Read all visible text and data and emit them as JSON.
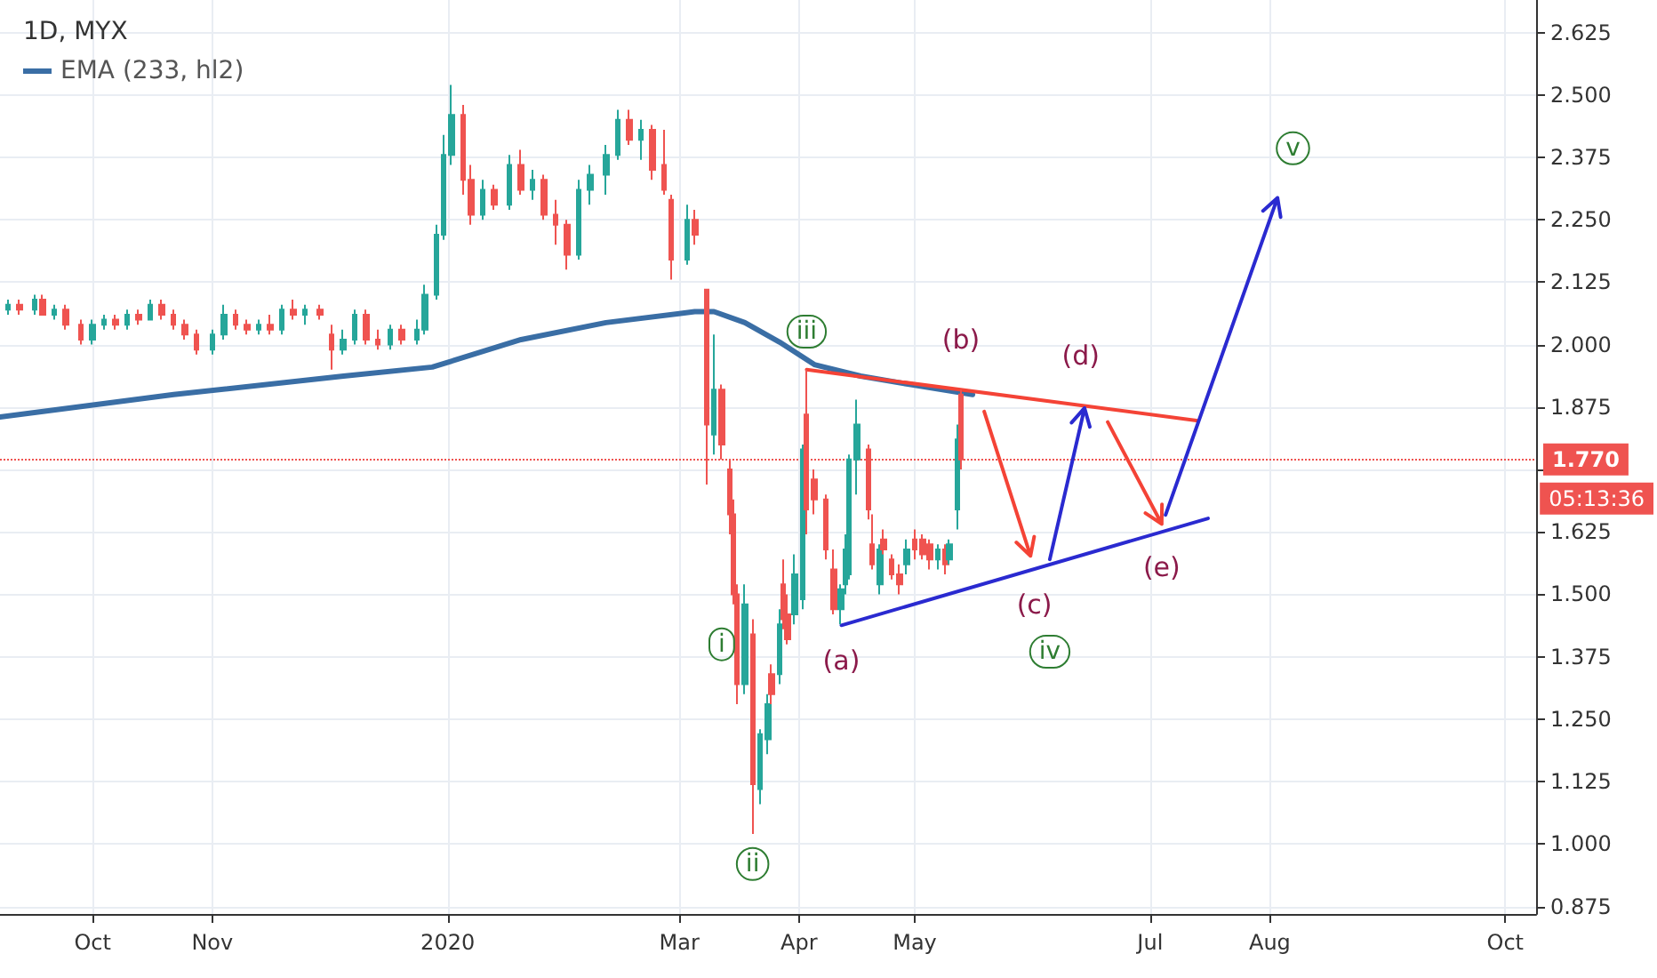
{
  "chart_data": {
    "type": "candlestick",
    "title": "1D, MYX",
    "legend": "top left",
    "grid": true,
    "xlim": [
      "2019-09-07",
      "2020-10-09"
    ],
    "xticks": [
      {
        "value": "2019-10-01",
        "label": "Oct"
      },
      {
        "value": "2019-11-01",
        "label": "Nov"
      },
      {
        "value": "2020-01-01",
        "label": "2020"
      },
      {
        "value": "2020-03-01",
        "label": "Mar"
      },
      {
        "value": "2020-04-01",
        "label": "Apr"
      },
      {
        "value": "2020-05-01",
        "label": "May"
      },
      {
        "value": "2020-07-01",
        "label": "Jul"
      },
      {
        "value": "2020-08-01",
        "label": "Aug"
      },
      {
        "value": "2020-10-01",
        "label": "Oct"
      }
    ],
    "ylim": [
      0.86,
      2.69
    ],
    "yticks": [
      0.875,
      {
        "value": 1,
        "label": "1.000"
      },
      1.125,
      {
        "value": 1.25,
        "label": "1.250"
      },
      1.375,
      {
        "value": 1.5,
        "label": "1.500"
      },
      1.625,
      {
        "value": 1.75,
        "label": null
      },
      1.875,
      {
        "value": 2,
        "label": "2.000"
      },
      2.125,
      {
        "value": 2.25,
        "label": "2.250"
      },
      2.375,
      {
        "value": 2.5,
        "label": "2.500"
      },
      2.625
    ],
    "x": [
      "2019-09-09",
      "2019-09-12",
      "2019-09-16",
      "2019-09-18",
      "2019-09-21",
      "2019-09-24",
      "2019-09-28",
      "2019-10-01",
      "2019-10-04",
      "2019-10-07",
      "2019-10-10",
      "2019-10-13",
      "2019-10-16",
      "2019-10-19",
      "2019-10-22",
      "2019-10-25",
      "2019-10-28",
      "2019-11-01",
      "2019-11-04",
      "2019-11-07",
      "2019-11-10",
      "2019-11-13",
      "2019-11-16",
      "2019-11-19",
      "2019-11-22",
      "2019-11-25",
      "2019-11-29",
      "2019-12-02",
      "2019-12-05",
      "2019-12-08",
      "2019-12-11",
      "2019-12-14",
      "2019-12-17",
      "2019-12-20",
      "2019-12-24",
      "2019-12-26",
      "2019-12-29",
      "2019-12-31",
      "2020-01-02",
      "2020-01-05",
      "2020-01-07",
      "2020-01-10",
      "2020-01-13",
      "2020-01-17",
      "2020-01-20",
      "2020-01-23",
      "2020-01-26",
      "2020-01-29",
      "2020-02-01",
      "2020-02-04",
      "2020-02-07",
      "2020-02-11",
      "2020-02-14",
      "2020-02-17",
      "2020-02-20",
      "2020-02-23",
      "2020-02-26",
      "2020-02-28",
      "2020-03-03",
      "2020-03-05",
      "2020-03-08",
      "2020-03-10",
      "2020-03-12",
      "2020-03-14",
      "2020-03-15",
      "2020-03-16",
      "2020-03-18",
      "2020-03-20",
      "2020-03-22",
      "2020-03-24",
      "2020-03-25",
      "2020-03-27",
      "2020-03-28",
      "2020-03-29",
      "2020-03-31",
      "2020-04-02",
      "2020-04-03",
      "2020-04-05",
      "2020-04-08",
      "2020-04-10",
      "2020-04-12",
      "2020-04-13",
      "2020-04-14",
      "2020-04-16",
      "2020-04-19",
      "2020-04-20",
      "2020-04-22",
      "2020-04-23",
      "2020-04-25",
      "2020-04-27",
      "2020-04-29",
      "2020-05-01",
      "2020-05-03",
      "2020-05-05",
      "2020-05-07",
      "2020-05-09",
      "2020-05-10",
      "2020-05-12",
      "2020-05-13"
    ],
    "ohlc": [
      [
        2.07,
        2.09,
        2.06,
        2.08
      ],
      [
        2.08,
        2.09,
        2.06,
        2.07
      ],
      [
        2.07,
        2.1,
        2.06,
        2.09
      ],
      [
        2.09,
        2.1,
        2.06,
        2.06
      ],
      [
        2.06,
        2.08,
        2.05,
        2.07
      ],
      [
        2.07,
        2.08,
        2.03,
        2.04
      ],
      [
        2.04,
        2.05,
        2.0,
        2.01
      ],
      [
        2.01,
        2.05,
        2.0,
        2.04
      ],
      [
        2.04,
        2.06,
        2.03,
        2.05
      ],
      [
        2.05,
        2.06,
        2.03,
        2.04
      ],
      [
        2.04,
        2.07,
        2.03,
        2.06
      ],
      [
        2.06,
        2.07,
        2.04,
        2.05
      ],
      [
        2.05,
        2.09,
        2.05,
        2.08
      ],
      [
        2.08,
        2.09,
        2.05,
        2.06
      ],
      [
        2.06,
        2.07,
        2.03,
        2.04
      ],
      [
        2.04,
        2.05,
        2.01,
        2.02
      ],
      [
        2.02,
        2.03,
        1.98,
        1.99
      ],
      [
        1.99,
        2.03,
        1.98,
        2.02
      ],
      [
        2.02,
        2.08,
        2.01,
        2.06
      ],
      [
        2.06,
        2.07,
        2.03,
        2.04
      ],
      [
        2.04,
        2.05,
        2.02,
        2.03
      ],
      [
        2.03,
        2.05,
        2.02,
        2.04
      ],
      [
        2.04,
        2.06,
        2.02,
        2.03
      ],
      [
        2.03,
        2.08,
        2.02,
        2.07
      ],
      [
        2.07,
        2.09,
        2.05,
        2.06
      ],
      [
        2.06,
        2.08,
        2.04,
        2.07
      ],
      [
        2.07,
        2.08,
        2.05,
        2.06
      ],
      [
        2.02,
        2.04,
        1.95,
        1.99
      ],
      [
        1.99,
        2.03,
        1.98,
        2.01
      ],
      [
        2.01,
        2.07,
        2.0,
        2.06
      ],
      [
        2.06,
        2.07,
        2.0,
        2.01
      ],
      [
        2.01,
        2.03,
        1.99,
        2.0
      ],
      [
        2.0,
        2.04,
        1.99,
        2.03
      ],
      [
        2.03,
        2.04,
        2.0,
        2.01
      ],
      [
        2.01,
        2.05,
        2.0,
        2.03
      ],
      [
        2.03,
        2.12,
        2.02,
        2.1
      ],
      [
        2.1,
        2.24,
        2.09,
        2.22
      ],
      [
        2.22,
        2.42,
        2.21,
        2.38
      ],
      [
        2.38,
        2.52,
        2.36,
        2.46
      ],
      [
        2.46,
        2.48,
        2.3,
        2.33
      ],
      [
        2.33,
        2.36,
        2.24,
        2.26
      ],
      [
        2.26,
        2.33,
        2.25,
        2.31
      ],
      [
        2.31,
        2.32,
        2.27,
        2.28
      ],
      [
        2.28,
        2.38,
        2.27,
        2.36
      ],
      [
        2.36,
        2.39,
        2.3,
        2.31
      ],
      [
        2.31,
        2.35,
        2.29,
        2.33
      ],
      [
        2.33,
        2.34,
        2.25,
        2.26
      ],
      [
        2.26,
        2.29,
        2.2,
        2.24
      ],
      [
        2.24,
        2.25,
        2.15,
        2.18
      ],
      [
        2.18,
        2.33,
        2.17,
        2.31
      ],
      [
        2.31,
        2.36,
        2.28,
        2.34
      ],
      [
        2.34,
        2.4,
        2.3,
        2.38
      ],
      [
        2.38,
        2.47,
        2.37,
        2.45
      ],
      [
        2.45,
        2.47,
        2.4,
        2.41
      ],
      [
        2.41,
        2.45,
        2.37,
        2.43
      ],
      [
        2.43,
        2.44,
        2.33,
        2.35
      ],
      [
        2.36,
        2.43,
        2.3,
        2.31
      ],
      [
        2.29,
        2.3,
        2.13,
        2.17
      ],
      [
        2.17,
        2.28,
        2.16,
        2.25
      ],
      [
        2.25,
        2.27,
        2.2,
        2.22
      ],
      [
        2.11,
        2.11,
        1.72,
        1.84
      ],
      [
        1.82,
        2.02,
        1.78,
        1.91
      ],
      [
        1.91,
        1.92,
        1.77,
        1.8
      ],
      [
        1.75,
        1.77,
        1.62,
        1.66
      ],
      [
        1.66,
        1.69,
        1.48,
        1.5
      ],
      [
        1.5,
        1.52,
        1.28,
        1.32
      ],
      [
        1.32,
        1.52,
        1.3,
        1.48
      ],
      [
        1.42,
        1.45,
        1.02,
        1.12
      ],
      [
        1.11,
        1.23,
        1.08,
        1.22
      ],
      [
        1.21,
        1.3,
        1.18,
        1.28
      ],
      [
        1.34,
        1.36,
        1.28,
        1.3
      ],
      [
        1.34,
        1.47,
        1.32,
        1.44
      ],
      [
        1.52,
        1.57,
        1.43,
        1.45
      ],
      [
        1.46,
        1.5,
        1.4,
        1.41
      ],
      [
        1.46,
        1.58,
        1.44,
        1.54
      ],
      [
        1.49,
        1.8,
        1.47,
        1.79
      ],
      [
        1.86,
        1.95,
        1.62,
        1.67
      ],
      [
        1.73,
        1.75,
        1.66,
        1.69
      ],
      [
        1.69,
        1.7,
        1.57,
        1.59
      ],
      [
        1.55,
        1.59,
        1.46,
        1.47
      ],
      [
        1.47,
        1.52,
        1.44,
        1.51
      ],
      [
        1.52,
        1.62,
        1.5,
        1.59
      ],
      [
        1.54,
        1.78,
        1.53,
        1.77
      ],
      [
        1.77,
        1.89,
        1.7,
        1.84
      ],
      [
        1.79,
        1.8,
        1.65,
        1.67
      ],
      [
        1.6,
        1.66,
        1.55,
        1.56
      ],
      [
        1.52,
        1.6,
        1.5,
        1.59
      ],
      [
        1.61,
        1.63,
        1.58,
        1.59
      ],
      [
        1.57,
        1.58,
        1.53,
        1.54
      ],
      [
        1.54,
        1.56,
        1.5,
        1.52
      ],
      [
        1.56,
        1.61,
        1.54,
        1.59
      ],
      [
        1.61,
        1.63,
        1.57,
        1.59
      ],
      [
        1.61,
        1.62,
        1.57,
        1.58
      ],
      [
        1.6,
        1.61,
        1.55,
        1.57
      ],
      [
        1.57,
        1.6,
        1.55,
        1.59
      ],
      [
        1.59,
        1.6,
        1.54,
        1.56
      ],
      [
        1.57,
        1.61,
        1.56,
        1.6
      ],
      [
        1.67,
        1.84,
        1.63,
        1.81
      ],
      [
        1.9,
        1.91,
        1.75,
        1.77
      ]
    ],
    "colors": [
      "#26a69a",
      "#ef5350",
      "#26a69a",
      "#ef5350",
      "#26a69a",
      "#ef5350",
      "#ef5350",
      "#26a69a",
      "#26a69a",
      "#ef5350",
      "#26a69a",
      "#ef5350",
      "#26a69a",
      "#ef5350",
      "#ef5350",
      "#ef5350",
      "#ef5350",
      "#26a69a",
      "#26a69a",
      "#ef5350",
      "#ef5350",
      "#26a69a",
      "#ef5350",
      "#26a69a",
      "#ef5350",
      "#26a69a",
      "#ef5350",
      "#ef5350",
      "#26a69a",
      "#26a69a",
      "#ef5350",
      "#ef5350",
      "#26a69a",
      "#ef5350",
      "#26a69a",
      "#26a69a",
      "#26a69a",
      "#26a69a",
      "#26a69a",
      "#ef5350",
      "#ef5350",
      "#26a69a",
      "#ef5350",
      "#26a69a",
      "#ef5350",
      "#26a69a",
      "#ef5350",
      "#ef5350",
      "#ef5350",
      "#26a69a",
      "#26a69a",
      "#26a69a",
      "#26a69a",
      "#ef5350",
      "#26a69a",
      "#ef5350",
      "#ef5350",
      "#ef5350",
      "#26a69a",
      "#ef5350",
      "#ef5350",
      "#26a69a",
      "#ef5350",
      "#ef5350",
      "#ef5350",
      "#ef5350",
      "#26a69a",
      "#ef5350",
      "#26a69a",
      "#26a69a",
      "#ef5350",
      "#26a69a",
      "#ef5350",
      "#ef5350",
      "#26a69a",
      "#26a69a",
      "#ef5350",
      "#ef5350",
      "#ef5350",
      "#ef5350",
      "#26a69a",
      "#26a69a",
      "#26a69a",
      "#26a69a",
      "#ef5350",
      "#ef5350",
      "#26a69a",
      "#ef5350",
      "#ef5350",
      "#ef5350",
      "#26a69a",
      "#ef5350",
      "#ef5350",
      "#ef5350",
      "#26a69a",
      "#ef5350",
      "#26a69a",
      "#26a69a",
      "#ef5350"
    ],
    "series": [
      {
        "type": "line",
        "name": "EMA (233, hl2)",
        "color": "#3a6ea5",
        "x": [
          "2019-09-07",
          "2019-10-22",
          "2019-12-05",
          "2019-12-28",
          "2020-01-20",
          "2020-02-11",
          "2020-03-05",
          "2020-03-10",
          "2020-03-18",
          "2020-03-27",
          "2020-04-05",
          "2020-04-17",
          "2020-04-30",
          "2020-05-16"
        ],
        "values": [
          1.855,
          1.9,
          1.937,
          1.955,
          2.01,
          2.044,
          2.066,
          2.066,
          2.044,
          2.005,
          1.96,
          1.937,
          1.92,
          1.9
        ]
      },
      {
        "type": "line",
        "color": "#f44336",
        "x": [
          "2020-04-03",
          "2020-07-13"
        ],
        "values": [
          1.95,
          1.848
        ]
      },
      {
        "type": "line",
        "color": "#2a2ad0",
        "x": [
          "2020-04-12",
          "2020-07-16"
        ],
        "values": [
          1.438,
          1.652
        ]
      }
    ],
    "ref_lines": [
      {
        "axis": "y",
        "value": 1.77,
        "label": "1.770",
        "color": "#ef5350",
        "line_style": "dotted"
      }
    ],
    "annotations": [
      {
        "text": "i",
        "x": "2020-03-12",
        "y": 1.4
      },
      {
        "text": "ii",
        "x": "2020-03-20",
        "y": 0.96
      },
      {
        "text": "iii",
        "x": "2020-04-03",
        "y": 2.026
      },
      {
        "text": "iv",
        "x": "2020-06-05",
        "y": 1.385
      },
      {
        "text": "v",
        "x": "2020-08-07",
        "y": 2.393
      },
      {
        "text": "(a)",
        "x": "2020-04-12",
        "y": 1.438
      },
      {
        "text": "(b)",
        "x": "2020-05-13",
        "y": 1.91
      },
      {
        "text": "(c)",
        "x": "2020-06-01",
        "y": 1.551
      },
      {
        "text": "(d)",
        "x": "2020-06-13",
        "y": 1.878
      },
      {
        "text": "(e)",
        "x": "2020-07-04",
        "y": 1.625
      },
      "05:13:36"
    ]
  }
}
